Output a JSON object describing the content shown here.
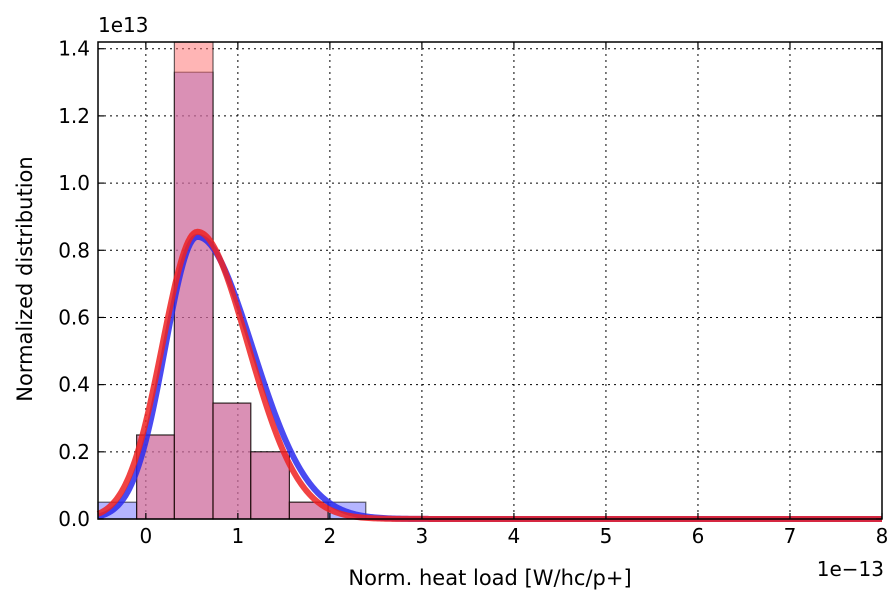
{
  "chart_data": {
    "type": "bar",
    "title": "",
    "xlabel": "Norm. heat load [W/hc/p+]",
    "ylabel": "Normalized distribution",
    "x_offset_label": "1e−13",
    "y_offset_label": "1e13",
    "xlim": [
      -0.52,
      8
    ],
    "ylim": [
      0,
      1.42
    ],
    "x_ticks": [
      0,
      1,
      2,
      3,
      4,
      5,
      6,
      7,
      8
    ],
    "y_ticks": [
      0.0,
      0.2,
      0.4,
      0.6,
      0.8,
      1.0,
      1.2,
      1.4
    ],
    "x_tick_labels": [
      "0",
      "1",
      "2",
      "3",
      "4",
      "5",
      "6",
      "7",
      "8"
    ],
    "y_tick_labels": [
      "0.0",
      "0.2",
      "0.4",
      "0.6",
      "0.8",
      "1.0",
      "1.2",
      "1.4"
    ],
    "grid": true,
    "bin_edges": [
      -0.52,
      -0.1,
      0.31,
      0.73,
      1.14,
      1.56,
      1.98,
      2.39
    ],
    "series": [
      {
        "kind": "histogram",
        "color": "#6b6bff",
        "values": [
          0.05,
          0.25,
          1.33,
          0.345,
          0.2,
          0.05,
          0.05
        ]
      },
      {
        "kind": "histogram",
        "color": "#ff6b6b",
        "values": [
          0,
          0.25,
          1.42,
          0.345,
          0.2,
          0.05,
          0.0
        ]
      },
      {
        "kind": "fit",
        "color": "#2a2aee",
        "curve": {
          "mu": 0.56,
          "sigma_left": 0.35,
          "sigma_right": 0.6,
          "peak": 0.84,
          "tail": 2.2
        }
      },
      {
        "kind": "fit",
        "color": "#ee2222",
        "curve": {
          "mu": 0.56,
          "sigma_left": 0.38,
          "sigma_right": 0.55,
          "peak": 0.855,
          "tail": 2.2
        }
      }
    ]
  }
}
